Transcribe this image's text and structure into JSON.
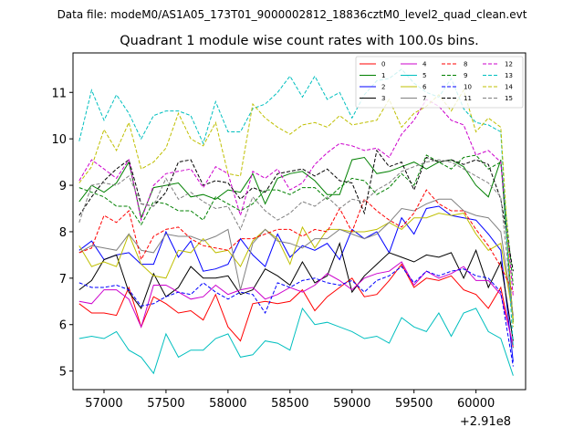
{
  "chart_data": {
    "type": "line",
    "suptitle": "Data file: modeM0/AS1A05_173T01_9000002812_18836cztM0_level2_quad_clean.evt",
    "title": "Quadrant 1 module wise count rates with 100.0s bins.",
    "xlabel": "",
    "ylabel": "",
    "x_offset_label": "+2.91e8",
    "xlim": [
      56750,
      60400
    ],
    "ylim": [
      4.6,
      11.85
    ],
    "x_ticks": [
      57000,
      57500,
      58000,
      58500,
      59000,
      59500,
      60000
    ],
    "x_tick_labels": [
      "57000",
      "57500",
      "58000",
      "58500",
      "59000",
      "59500",
      "60000"
    ],
    "y_ticks": [
      5,
      6,
      7,
      8,
      9,
      10,
      11
    ],
    "y_tick_labels": [
      "5",
      "6",
      "7",
      "8",
      "9",
      "10",
      "11"
    ],
    "grid": false,
    "legend_position": "top-right",
    "x": [
      56800,
      56900,
      57000,
      57100,
      57200,
      57300,
      57400,
      57500,
      57600,
      57700,
      57800,
      57900,
      58000,
      58100,
      58200,
      58300,
      58400,
      58500,
      58600,
      58700,
      58800,
      58900,
      59000,
      59100,
      59200,
      59300,
      59400,
      59500,
      59600,
      59700,
      59800,
      59900,
      60000,
      60100,
      60200,
      60300
    ],
    "series": [
      {
        "name": "0",
        "color": "#ff0000",
        "dash": "solid",
        "values": [
          6.45,
          6.25,
          6.25,
          6.2,
          6.8,
          5.95,
          6.6,
          6.45,
          6.25,
          6.3,
          6.1,
          6.65,
          5.95,
          5.65,
          6.45,
          6.5,
          6.45,
          6.5,
          6.75,
          6.3,
          6.6,
          6.8,
          7.0,
          6.6,
          6.65,
          6.95,
          7.3,
          6.8,
          7.0,
          6.95,
          7.05,
          6.75,
          6.65,
          6.35,
          6.8,
          5.5
        ]
      },
      {
        "name": "1",
        "color": "#008000",
        "dash": "solid",
        "values": [
          8.65,
          9.0,
          8.85,
          9.05,
          9.5,
          8.3,
          8.95,
          9.0,
          9.05,
          8.75,
          8.8,
          8.7,
          8.9,
          8.85,
          9.25,
          8.6,
          9.15,
          9.25,
          9.3,
          9.1,
          8.8,
          8.8,
          9.55,
          9.6,
          9.25,
          9.3,
          9.4,
          9.5,
          9.35,
          9.5,
          9.55,
          9.4,
          9.0,
          8.75,
          9.55,
          6.05
        ]
      },
      {
        "name": "2",
        "color": "#0000ff",
        "dash": "solid",
        "values": [
          7.6,
          7.8,
          7.4,
          7.5,
          7.55,
          7.3,
          7.3,
          8.0,
          7.45,
          7.8,
          7.15,
          7.2,
          7.3,
          7.85,
          7.5,
          7.25,
          7.95,
          7.45,
          7.7,
          7.6,
          7.75,
          7.4,
          8.05,
          7.85,
          8.0,
          7.55,
          8.3,
          7.95,
          8.5,
          8.55,
          8.35,
          8.3,
          8.25,
          7.95,
          7.6,
          5.2
        ]
      },
      {
        "name": "3",
        "color": "#000000",
        "dash": "solid",
        "values": [
          6.75,
          6.95,
          7.4,
          7.5,
          6.7,
          6.35,
          7.1,
          6.6,
          6.8,
          7.25,
          7.0,
          7.0,
          7.05,
          6.65,
          6.75,
          7.2,
          7.05,
          6.85,
          7.35,
          6.9,
          7.05,
          7.75,
          6.7,
          7.05,
          7.3,
          7.55,
          7.45,
          7.35,
          7.5,
          7.45,
          7.55,
          7.0,
          7.6,
          6.8,
          7.35,
          5.65
        ]
      },
      {
        "name": "4",
        "color": "#cc00cc",
        "dash": "solid",
        "values": [
          6.5,
          6.45,
          6.75,
          6.75,
          6.55,
          5.95,
          6.85,
          6.85,
          6.7,
          6.55,
          6.6,
          6.85,
          6.65,
          6.75,
          6.8,
          6.55,
          6.65,
          6.8,
          6.7,
          6.85,
          7.1,
          6.95,
          6.75,
          7.0,
          7.1,
          7.15,
          7.35,
          6.85,
          7.15,
          7.0,
          7.1,
          7.25,
          6.95,
          6.95,
          6.65,
          5.55
        ]
      },
      {
        "name": "5",
        "color": "#00bfbf",
        "dash": "solid",
        "values": [
          5.7,
          5.75,
          5.7,
          5.85,
          5.45,
          5.3,
          4.95,
          5.8,
          5.3,
          5.45,
          5.45,
          5.7,
          5.8,
          5.3,
          5.35,
          5.65,
          5.6,
          5.45,
          6.35,
          6.0,
          6.05,
          5.95,
          5.85,
          5.7,
          5.75,
          5.6,
          6.15,
          5.95,
          5.85,
          6.25,
          5.75,
          6.25,
          6.35,
          5.85,
          5.7,
          4.9
        ]
      },
      {
        "name": "6",
        "color": "#bfbf00",
        "dash": "solid",
        "values": [
          7.7,
          7.25,
          7.35,
          7.25,
          7.95,
          7.3,
          7.05,
          7.0,
          7.6,
          7.55,
          7.85,
          7.55,
          7.6,
          7.25,
          7.8,
          8.05,
          7.85,
          7.3,
          8.1,
          7.65,
          8.05,
          8.05,
          8.0,
          8.0,
          8.05,
          8.2,
          8.05,
          8.3,
          8.3,
          8.4,
          8.35,
          8.4,
          7.95,
          7.6,
          7.75,
          6.15
        ]
      },
      {
        "name": "7",
        "color": "#808080",
        "dash": "solid",
        "values": [
          7.55,
          7.7,
          7.65,
          7.6,
          7.95,
          7.6,
          7.55,
          7.95,
          7.9,
          7.9,
          7.8,
          7.9,
          8.05,
          6.75,
          7.75,
          8.05,
          7.8,
          7.75,
          7.65,
          7.85,
          7.85,
          8.05,
          7.95,
          7.85,
          7.95,
          8.2,
          8.5,
          8.45,
          8.6,
          8.7,
          8.7,
          8.45,
          8.35,
          8.3,
          8.0,
          6.2
        ]
      },
      {
        "name": "8",
        "color": "#ff0000",
        "dash": "dashed",
        "values": [
          7.55,
          7.65,
          8.35,
          8.2,
          8.45,
          7.4,
          7.9,
          8.05,
          8.1,
          7.85,
          7.7,
          7.65,
          7.6,
          7.85,
          7.85,
          7.95,
          8.05,
          8.05,
          7.9,
          8.05,
          8.0,
          8.5,
          8.0,
          8.7,
          8.45,
          8.25,
          8.1,
          8.4,
          8.9,
          8.6,
          8.45,
          8.45,
          8.05,
          7.7,
          7.25,
          6.7
        ]
      },
      {
        "name": "9",
        "color": "#008000",
        "dash": "dashed",
        "values": [
          8.95,
          8.85,
          8.75,
          8.55,
          8.55,
          8.15,
          8.65,
          8.6,
          8.45,
          8.45,
          8.25,
          8.75,
          8.6,
          8.45,
          8.6,
          8.9,
          8.9,
          8.8,
          8.95,
          8.95,
          8.7,
          8.95,
          9.15,
          9.1,
          8.8,
          8.95,
          9.25,
          9.0,
          9.65,
          9.5,
          9.35,
          9.6,
          9.65,
          9.35,
          9.5,
          6.85
        ]
      },
      {
        "name": "10",
        "color": "#0000ff",
        "dash": "dashed",
        "values": [
          6.9,
          6.8,
          6.8,
          6.85,
          6.75,
          6.4,
          6.45,
          6.6,
          6.7,
          6.65,
          6.9,
          6.7,
          6.55,
          6.7,
          6.65,
          6.25,
          6.9,
          6.8,
          6.95,
          7.0,
          6.9,
          6.85,
          6.95,
          6.7,
          6.95,
          7.05,
          7.25,
          6.9,
          7.15,
          7.05,
          7.15,
          7.2,
          7.05,
          7.0,
          6.7,
          5.1
        ]
      },
      {
        "name": "11",
        "color": "#000000",
        "dash": "dashed",
        "values": [
          8.35,
          8.75,
          9.1,
          9.35,
          9.55,
          8.6,
          8.55,
          8.85,
          9.5,
          9.55,
          9.0,
          9.1,
          9.05,
          8.7,
          8.95,
          8.85,
          9.25,
          9.3,
          9.35,
          9.2,
          9.35,
          9.1,
          9.05,
          8.4,
          9.75,
          9.4,
          9.5,
          8.9,
          9.6,
          9.5,
          9.55,
          9.45,
          9.55,
          9.45,
          8.7,
          7.15
        ]
      },
      {
        "name": "12",
        "color": "#cc00cc",
        "dash": "dashed",
        "values": [
          9.1,
          9.55,
          9.35,
          9.15,
          9.55,
          8.25,
          9.0,
          9.25,
          9.3,
          9.35,
          8.95,
          9.4,
          9.25,
          8.35,
          9.3,
          9.15,
          9.35,
          8.9,
          9.05,
          9.45,
          9.7,
          9.9,
          9.85,
          9.75,
          9.8,
          9.6,
          10.1,
          10.4,
          10.85,
          10.7,
          10.4,
          10.3,
          9.65,
          9.75,
          9.5,
          6.6
        ]
      },
      {
        "name": "13",
        "color": "#00bfbf",
        "dash": "dashed",
        "values": [
          9.95,
          11.05,
          10.4,
          10.95,
          10.55,
          10.0,
          10.5,
          10.6,
          10.6,
          10.5,
          9.9,
          10.8,
          10.15,
          10.15,
          10.65,
          10.75,
          11.0,
          11.35,
          10.9,
          11.35,
          10.85,
          11.0,
          10.45,
          10.95,
          11.25,
          11.3,
          11.5,
          11.2,
          11.0,
          10.9,
          11.3,
          10.65,
          10.35,
          10.3,
          10.15,
          5.5
        ]
      },
      {
        "name": "14",
        "color": "#bfbf00",
        "dash": "dashed",
        "values": [
          9.05,
          9.4,
          10.2,
          9.75,
          10.35,
          9.35,
          9.5,
          9.8,
          10.55,
          10.0,
          9.85,
          10.35,
          9.25,
          9.2,
          10.75,
          10.45,
          10.25,
          10.1,
          10.3,
          10.35,
          10.25,
          10.5,
          10.3,
          10.35,
          10.4,
          10.85,
          10.25,
          10.55,
          10.7,
          10.95,
          10.6,
          11.05,
          10.15,
          10.45,
          10.25,
          5.95
        ]
      },
      {
        "name": "15",
        "color": "#808080",
        "dash": "dashed",
        "values": [
          8.2,
          9.0,
          9.05,
          9.0,
          9.2,
          8.6,
          8.55,
          9.15,
          8.7,
          8.85,
          8.65,
          8.5,
          8.55,
          8.05,
          8.75,
          8.45,
          8.25,
          8.4,
          8.65,
          8.55,
          8.75,
          8.5,
          8.7,
          8.65,
          8.9,
          9.05,
          9.3,
          9.4,
          9.5,
          9.55,
          9.5,
          9.35,
          9.2,
          9.05,
          8.75,
          6.15
        ]
      }
    ]
  }
}
